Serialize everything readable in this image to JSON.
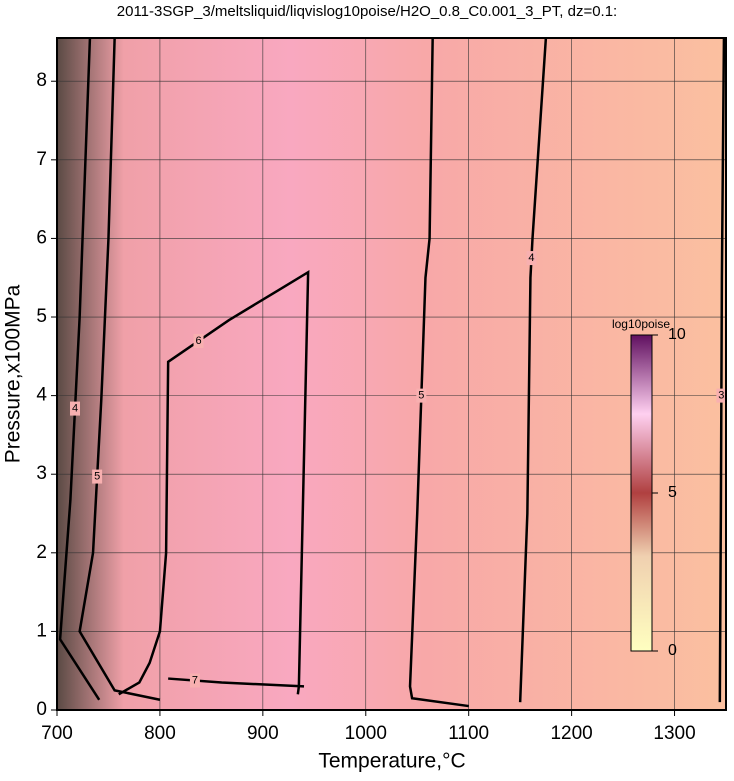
{
  "chart_data": {
    "type": "contour",
    "title": "2011-3SGP_3/meltsliquid/liqvislog10poise/H2O_0.8_C0.001_3_PT, dz=0.1:",
    "x_label": "Temperature,°C",
    "y_label": "Pressure,x100MPa",
    "xlim": [
      700,
      1350
    ],
    "ylim": [
      0,
      8.55
    ],
    "xticks": [
      700,
      800,
      900,
      1000,
      1100,
      1200,
      1300
    ],
    "yticks": [
      0,
      1,
      2,
      3,
      4,
      5,
      6,
      7,
      8
    ],
    "grid": true,
    "colorbar": {
      "label": "log10poise",
      "lim": [
        0,
        10
      ],
      "ticks": [
        0,
        5,
        10
      ]
    },
    "contours": [
      {
        "level": 3,
        "x": [
          1348,
          1346,
          1345,
          1344
        ],
        "y": [
          8.55,
          5.5,
          2.5,
          0.1
        ]
      },
      {
        "level": 4,
        "x": [
          1175,
          1162,
          1160,
          1157,
          1150
        ],
        "y": [
          8.55,
          6.0,
          5.5,
          2.5,
          0.1
        ]
      },
      {
        "level": 5,
        "x": [
          1065,
          1062,
          1058,
          1050,
          1043,
          1045,
          1100
        ],
        "y": [
          8.55,
          6.0,
          5.5,
          2.5,
          0.3,
          0.15,
          0.05
        ]
      },
      {
        "level": 6,
        "x": [
          934,
          935,
          944,
          915,
          867,
          808,
          806,
          800,
          790,
          780,
          760
        ],
        "y": [
          0.2,
          0.3,
          5.57,
          5.34,
          4.96,
          4.43,
          2.0,
          1.0,
          0.6,
          0.35,
          0.2
        ]
      },
      {
        "level": 7,
        "x": [
          808,
          860,
          940
        ],
        "y": [
          0.4,
          0.35,
          0.3
        ]
      },
      {
        "level": 5,
        "x": [
          756,
          750,
          743,
          735,
          722,
          756,
          800
        ],
        "y": [
          8.55,
          6.0,
          3.94,
          2.0,
          1.0,
          0.25,
          0.13
        ]
      },
      {
        "level": 4,
        "x": [
          732,
          722,
          713,
          703,
          741
        ],
        "y": [
          8.55,
          5.0,
          2.67,
          0.9,
          0.13
        ]
      }
    ]
  }
}
